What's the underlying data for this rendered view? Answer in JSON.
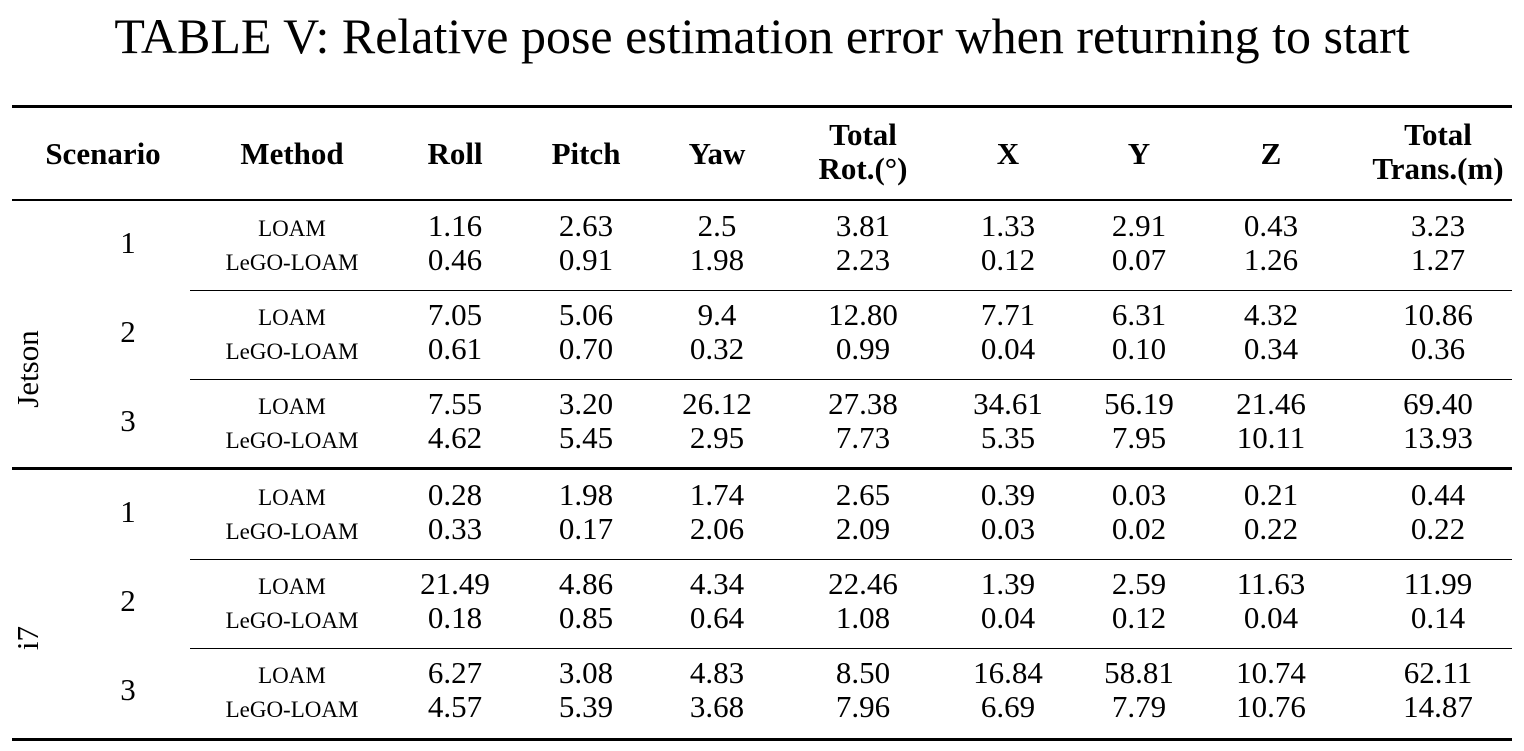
{
  "caption": "TABLE V: Relative pose estimation error when returning to start",
  "headers": {
    "scenario": "Scenario",
    "method": "Method",
    "roll": "Roll",
    "pitch": "Pitch",
    "yaw": "Yaw",
    "total_rot_line1": "Total",
    "total_rot_line2": "Rot.(°)",
    "x": "X",
    "y": "Y",
    "z": "Z",
    "total_trans_line1": "Total",
    "total_trans_line2": "Trans.(m)"
  },
  "groups": [
    {
      "platform": "Jetson",
      "scenarios": [
        {
          "id": "1",
          "rows": [
            {
              "method": "LOAM",
              "values": [
                "1.16",
                "2.63",
                "2.5",
                "3.81",
                "1.33",
                "2.91",
                "0.43",
                "3.23"
              ]
            },
            {
              "method": "LeGO-LOAM",
              "values": [
                "0.46",
                "0.91",
                "1.98",
                "2.23",
                "0.12",
                "0.07",
                "1.26",
                "1.27"
              ]
            }
          ]
        },
        {
          "id": "2",
          "rows": [
            {
              "method": "LOAM",
              "values": [
                "7.05",
                "5.06",
                "9.4",
                "12.80",
                "7.71",
                "6.31",
                "4.32",
                "10.86"
              ]
            },
            {
              "method": "LeGO-LOAM",
              "values": [
                "0.61",
                "0.70",
                "0.32",
                "0.99",
                "0.04",
                "0.10",
                "0.34",
                "0.36"
              ]
            }
          ]
        },
        {
          "id": "3",
          "rows": [
            {
              "method": "LOAM",
              "values": [
                "7.55",
                "3.20",
                "26.12",
                "27.38",
                "34.61",
                "56.19",
                "21.46",
                "69.40"
              ]
            },
            {
              "method": "LeGO-LOAM",
              "values": [
                "4.62",
                "5.45",
                "2.95",
                "7.73",
                "5.35",
                "7.95",
                "10.11",
                "13.93"
              ]
            }
          ]
        }
      ]
    },
    {
      "platform": "i7",
      "scenarios": [
        {
          "id": "1",
          "rows": [
            {
              "method": "LOAM",
              "values": [
                "0.28",
                "1.98",
                "1.74",
                "2.65",
                "0.39",
                "0.03",
                "0.21",
                "0.44"
              ]
            },
            {
              "method": "LeGO-LOAM",
              "values": [
                "0.33",
                "0.17",
                "2.06",
                "2.09",
                "0.03",
                "0.02",
                "0.22",
                "0.22"
              ]
            }
          ]
        },
        {
          "id": "2",
          "rows": [
            {
              "method": "LOAM",
              "values": [
                "21.49",
                "4.86",
                "4.34",
                "22.46",
                "1.39",
                "2.59",
                "11.63",
                "11.99"
              ]
            },
            {
              "method": "LeGO-LOAM",
              "values": [
                "0.18",
                "0.85",
                "0.64",
                "1.08",
                "0.04",
                "0.12",
                "0.04",
                "0.14"
              ]
            }
          ]
        },
        {
          "id": "3",
          "rows": [
            {
              "method": "LOAM",
              "values": [
                "6.27",
                "3.08",
                "4.83",
                "8.50",
                "16.84",
                "58.81",
                "10.74",
                "62.11"
              ]
            },
            {
              "method": "LeGO-LOAM",
              "values": [
                "4.57",
                "5.39",
                "3.68",
                "7.96",
                "6.69",
                "7.79",
                "10.76",
                "14.87"
              ]
            }
          ]
        }
      ]
    }
  ]
}
